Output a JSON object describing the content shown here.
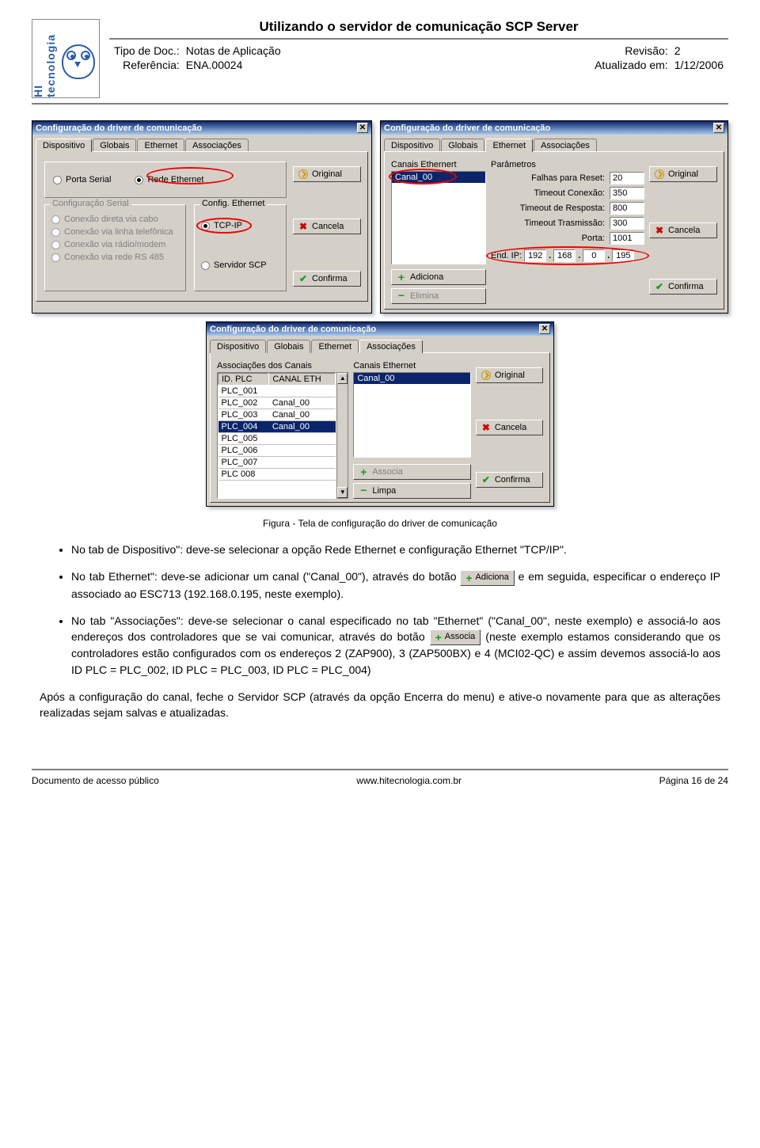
{
  "header": {
    "logo_text": "HI tecnologia",
    "doc_title": "Utilizando o servidor de comunicação SCP Server",
    "left": {
      "tipo_label": "Tipo de Doc.:",
      "tipo_value": "Notas de Aplicação",
      "ref_label": "Referência:",
      "ref_value": "ENA.00024"
    },
    "right": {
      "rev_label": "Revisão:",
      "rev_value": "2",
      "atual_label": "Atualizado em:",
      "atual_value": "1/12/2006"
    }
  },
  "dlg_common": {
    "title": "Configuração do driver de comunicação",
    "tabs": [
      "Dispositivo",
      "Globais",
      "Ethernet",
      "Associações"
    ],
    "btn_original": "Original",
    "btn_cancela": "Cancela",
    "btn_confirma": "Confirma"
  },
  "dlg1": {
    "active_tab": 0,
    "radio_porta": "Porta Serial",
    "radio_rede": "Rede Ethernet",
    "grp_serial": "Configuração Serial",
    "serial_opts": [
      "Conexão direta via cabo",
      "Conexão via linha telefônica",
      "Conexão via rádio/modem",
      "Conexão via rede RS 485"
    ],
    "grp_eth": "Config. Ethernet",
    "eth_tcpip": "TCP-IP",
    "eth_scp": "Servidor SCP",
    "ring_colors": "#e00000"
  },
  "dlg2": {
    "active_tab": 2,
    "grp_canais": "Canais Ethernert",
    "grp_param": "Parâmetros",
    "channel": "Canal_00",
    "btn_adiciona": "Adiciona",
    "btn_elimina": "Elimina",
    "fields": {
      "falhas_label": "Falhas para Reset:",
      "falhas": "20",
      "tcon_label": "Timeout Conexão:",
      "tcon": "350",
      "tresp_label": "Timeout de Resposta:",
      "tresp": "800",
      "ttras_label": "Timeout Trasmissão:",
      "ttras": "300",
      "porta_label": "Porta:",
      "porta": "1001",
      "ip_label": "End. IP:",
      "ip": [
        "192",
        "168",
        "0",
        "195"
      ]
    }
  },
  "dlg3": {
    "active_tab": 3,
    "grp_assoc": "Associações dos Canais",
    "grp_canais": "Canais Ethernet",
    "cols": [
      "ID. PLC",
      "CANAL ETH"
    ],
    "rows": [
      [
        "PLC_001",
        ""
      ],
      [
        "PLC_002",
        "Canal_00"
      ],
      [
        "PLC_003",
        "Canal_00"
      ],
      [
        "PLC_004",
        "Canal_00"
      ],
      [
        "PLC_005",
        ""
      ],
      [
        "PLC_006",
        ""
      ],
      [
        "PLC_007",
        ""
      ],
      [
        "PLC 008",
        ""
      ]
    ],
    "selected_row": 3,
    "channel": "Canal_00",
    "btn_associa": "Associa",
    "btn_limpa": "Limpa"
  },
  "caption": "Figura - Tela de configuração do driver de comunicação",
  "bullets": {
    "b1_a": "No tab de Dispositivo\": deve-se selecionar a opção Rede Ethernet e configuração Ethernet \"TCP/IP\".",
    "b2_a": "No tab Ethernet\": deve-se adicionar um canal (\"Canal_00\"), através do botão ",
    "b2_b": " e em seguida, especificar o endereço IP associado ao ESC713 (192.168.0.195, neste exemplo).",
    "b3_a": "No tab \"Associações\": deve-se selecionar o canal especificado no tab \"Ethernet\" (\"Canal_00\", neste exemplo) e associá-lo aos endereços dos controladores que se vai comunicar, através do botão ",
    "b3_b": " (neste exemplo estamos considerando que os controladores estão configurados com os endereços 2 (ZAP900), 3 (ZAP500BX) e 4 (MCI02-QC) e assim devemos associá-lo aos ID PLC = PLC_002, ID PLC = PLC_003, ID PLC = PLC_004)",
    "inline_adiciona": "Adiciona",
    "inline_associa": "Associa"
  },
  "para": "Após a configuração do canal, feche o Servidor SCP (através da opção Encerra do menu) e ative-o novamente para que as alterações realizadas sejam salvas e atualizadas.",
  "footer": {
    "left": "Documento de acesso público",
    "mid": "www.hitecnologia.com.br",
    "right": "Página 16 de 24"
  },
  "style": {
    "dlg_bg": "#d4d0c8",
    "title_grad_from": "#0b246a",
    "title_grad_to": "#a6caf0",
    "ring_color": "#e00000",
    "sel_bg": "#0b246a"
  }
}
